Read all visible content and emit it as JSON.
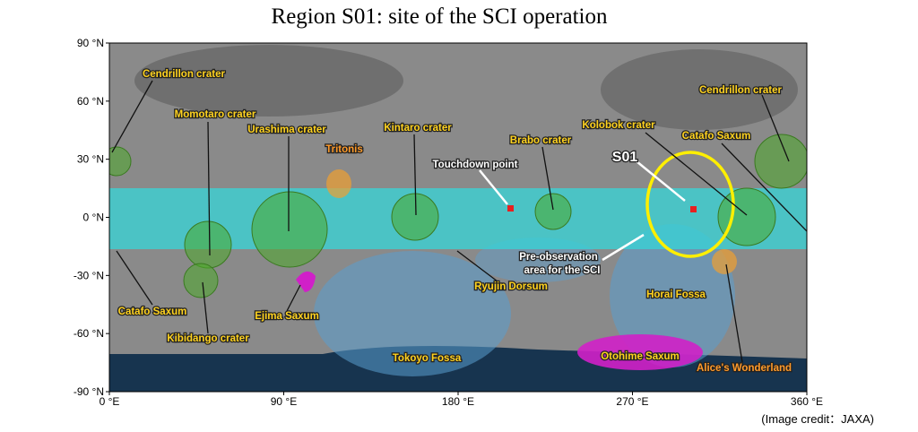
{
  "header": {
    "title": "Region S01: site of the SCI operation"
  },
  "axes": {
    "y_ticks": [
      "90 °N",
      "60 °N",
      "30 °N",
      "0 °N",
      "-30 °N",
      "-60 °N",
      "-90 °N"
    ],
    "x_ticks": [
      "0 °E",
      "90 °E",
      "180 °E",
      "270 °E",
      "360 °E"
    ]
  },
  "features": {
    "cendrillon_left": "Cendrillon crater",
    "momotaro": "Momotaro crater",
    "urashima": "Urashima crater",
    "tritonis": "Tritonis",
    "kintaro": "Kintaro crater",
    "brabo": "Brabo crater",
    "kolobok": "Kolobok crater",
    "cendrillon_right": "Cendrillon crater",
    "catafo_right": "Catafo Saxum",
    "catafo_left": "Catafo Saxum",
    "ryujin": "Ryujin Dorsum",
    "horai": "Horai Fossa",
    "ejima": "Ejima Saxum",
    "kibidango": "Kibidango crater",
    "tokoyo": "Tokoyo Fossa",
    "otohime": "Otohime Saxum",
    "alice": "Alice's Wonderland"
  },
  "annotations": {
    "touchdown": "Touchdown point",
    "s01": "S01",
    "pre_observation": [
      "Pre-observation",
      "area for the SCI"
    ]
  },
  "credit": "(Image credit：JAXA)"
}
